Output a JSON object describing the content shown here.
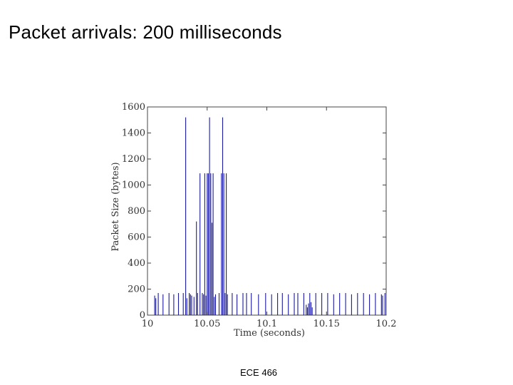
{
  "slide": {
    "title": "Packet arrivals: 200 milliseconds",
    "footer": "ECE 466"
  },
  "chart_data": {
    "type": "bar",
    "subtype": "stem",
    "title": "",
    "xlabel": "Time (seconds)",
    "ylabel": "Packet Size (bytes)",
    "xlim": [
      10,
      10.2
    ],
    "ylim": [
      0,
      1600
    ],
    "xticks": [
      "10",
      "10.05",
      "10.1",
      "10.15",
      "10.2"
    ],
    "yticks": [
      "0",
      "200",
      "400",
      "600",
      "800",
      "1000",
      "1200",
      "1400",
      "1600"
    ],
    "grid": false,
    "series_color": "#1a1aa0",
    "series": [
      {
        "x": [
          10.006,
          10.007,
          10.009,
          10.013,
          10.018,
          10.022,
          10.026,
          10.03,
          10.032,
          10.033,
          10.035,
          10.036,
          10.037,
          10.039,
          10.041,
          10.042,
          10.044,
          10.046,
          10.047,
          10.048,
          10.049,
          10.05,
          10.051,
          10.052,
          10.053,
          10.054,
          10.055,
          10.056,
          10.057,
          10.06,
          10.062,
          10.063,
          10.064,
          10.065,
          10.066,
          10.067,
          10.071,
          10.075,
          10.08,
          10.083,
          10.087,
          10.093,
          10.099,
          10.104,
          10.109,
          10.113,
          10.118,
          10.123,
          10.126,
          10.131,
          10.133,
          10.134,
          10.135,
          10.136,
          10.137,
          10.138,
          10.141,
          10.146,
          10.151,
          10.156,
          10.161,
          10.166,
          10.171,
          10.176,
          10.181,
          10.186,
          10.191,
          10.196,
          10.197,
          10.199
        ],
        "y": [
          150,
          130,
          170,
          160,
          170,
          160,
          170,
          170,
          1520,
          130,
          170,
          160,
          150,
          140,
          720,
          170,
          1090,
          170,
          160,
          1090,
          150,
          1090,
          1090,
          1520,
          1090,
          710,
          1090,
          140,
          160,
          170,
          1090,
          1520,
          1090,
          170,
          1090,
          160,
          170,
          160,
          170,
          170,
          170,
          160,
          170,
          160,
          170,
          170,
          160,
          170,
          170,
          170,
          80,
          60,
          90,
          170,
          100,
          60,
          170,
          170,
          170,
          160,
          170,
          170,
          160,
          170,
          170,
          160,
          170,
          160,
          150,
          170
        ]
      }
    ]
  }
}
